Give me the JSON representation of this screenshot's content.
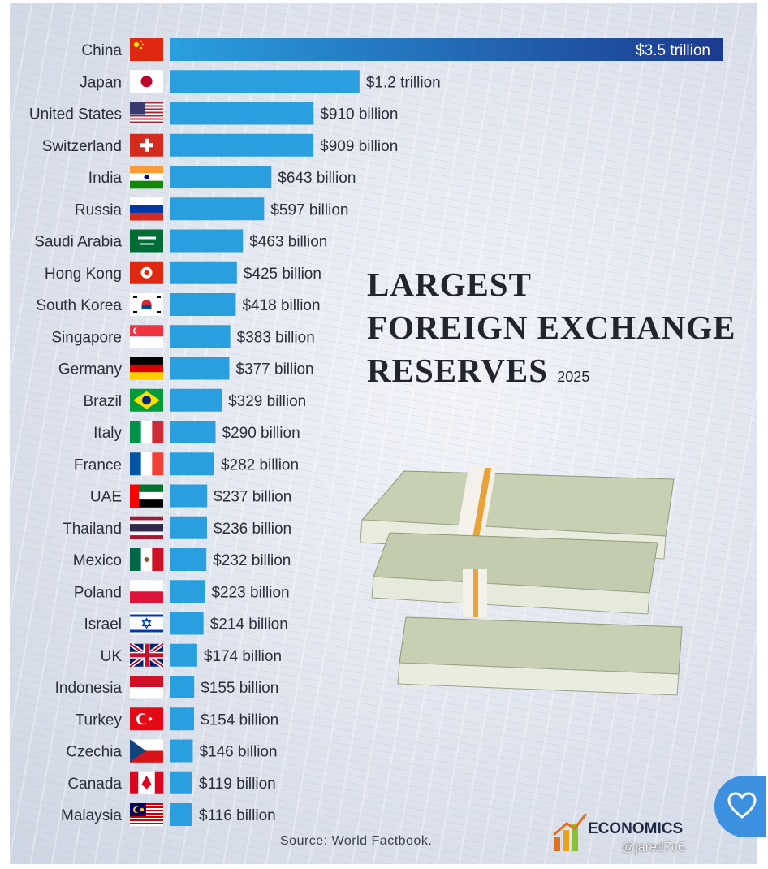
{
  "title_lines": [
    "LARGEST",
    "FOREIGN EXCHANGE",
    "RESERVES"
  ],
  "title_year": "2025",
  "source": "Source: World Factbook.",
  "logo_text": "ECONOMICS",
  "watermark": "@jared7c6",
  "colors": {
    "bar": "#2a9fe0",
    "bar_top_start": "#2a9fe0",
    "bar_top_end": "#1c3a8f",
    "heart_button": "#3d8fe0"
  },
  "icons": {
    "heart_button": "heart-icon",
    "logo": "growth-chart-logo"
  },
  "chart_data": {
    "type": "bar",
    "orientation": "horizontal",
    "categories": [
      "China",
      "Japan",
      "United States",
      "Switzerland",
      "India",
      "Russia",
      "Saudi Arabia",
      "Hong Kong",
      "South Korea",
      "Singapore",
      "Germany",
      "Brazil",
      "Italy",
      "France",
      "UAE",
      "Thailand",
      "Mexico",
      "Poland",
      "Israel",
      "UK",
      "Indonesia",
      "Turkey",
      "Czechia",
      "Canada",
      "Malaysia"
    ],
    "values": [
      3500,
      1200,
      910,
      909,
      643,
      597,
      463,
      425,
      418,
      383,
      377,
      329,
      290,
      282,
      237,
      236,
      232,
      223,
      214,
      174,
      155,
      154,
      146,
      119,
      116
    ],
    "value_unit": "billion USD",
    "labels": [
      "$3.5 trillion",
      "$1.2 trillion",
      "$910 billion",
      "$909 billion",
      "$643 billion",
      "$597 billion",
      "$463 billion",
      "$425 billion",
      "$418 billion",
      "$383 billion",
      "$377 billion",
      "$329 billion",
      "$290 billion",
      "$282 billion",
      "$237 billion",
      "$236 billion",
      "$232 billion",
      "$223 billion",
      "$214 billion",
      "$174 billion",
      "$155 billion",
      "$154 billion",
      "$146 billion",
      "$119 billion",
      "$116 billion"
    ],
    "flags": [
      "flag-china",
      "flag-japan",
      "flag-united-states",
      "flag-switzerland",
      "flag-india",
      "flag-russia",
      "flag-saudi-arabia",
      "flag-hong-kong",
      "flag-south-korea",
      "flag-singapore",
      "flag-germany",
      "flag-brazil",
      "flag-italy",
      "flag-france",
      "flag-uae",
      "flag-thailand",
      "flag-mexico",
      "flag-poland",
      "flag-israel",
      "flag-uk",
      "flag-indonesia",
      "flag-turkey",
      "flag-czechia",
      "flag-canada",
      "flag-malaysia"
    ]
  }
}
